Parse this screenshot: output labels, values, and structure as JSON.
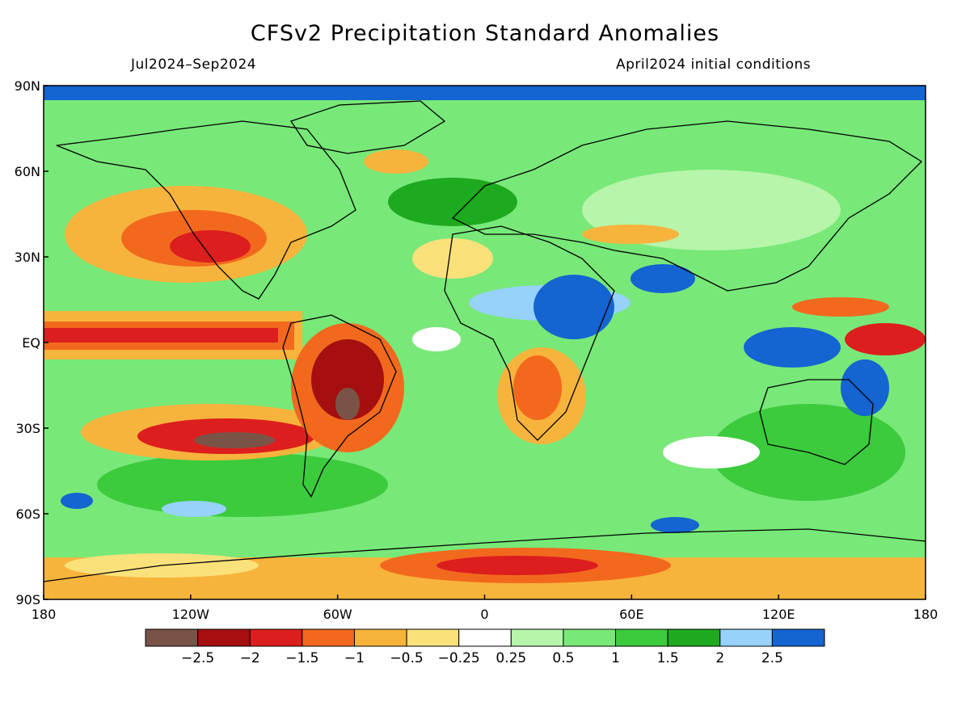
{
  "title": "CFSv2 Precipitation Standard Anomalies",
  "period": "Jul2024–Sep2024",
  "init_conditions": "April2024 initial conditions",
  "lat_labels": [
    "90N",
    "60N",
    "30N",
    "EQ",
    "30S",
    "60S",
    "90S"
  ],
  "lon_labels": [
    "180",
    "120W",
    "60W",
    "0",
    "60E",
    "120E",
    "180"
  ],
  "colorbar": {
    "colors": [
      "#7a5347",
      "#a50f0f",
      "#dc1e1e",
      "#f2691e",
      "#f7b43c",
      "#fbe17a",
      "#ffffff",
      "#b6f5aa",
      "#78e878",
      "#3ccb3c",
      "#1eaa1e",
      "#96d2fa",
      "#1464d2"
    ],
    "labels": [
      "−2.5",
      "−2",
      "−1.5",
      "−1",
      "−0.5",
      "−0.25",
      "0.25",
      "0.5",
      "1",
      "1.5",
      "2",
      "2.5"
    ]
  }
}
